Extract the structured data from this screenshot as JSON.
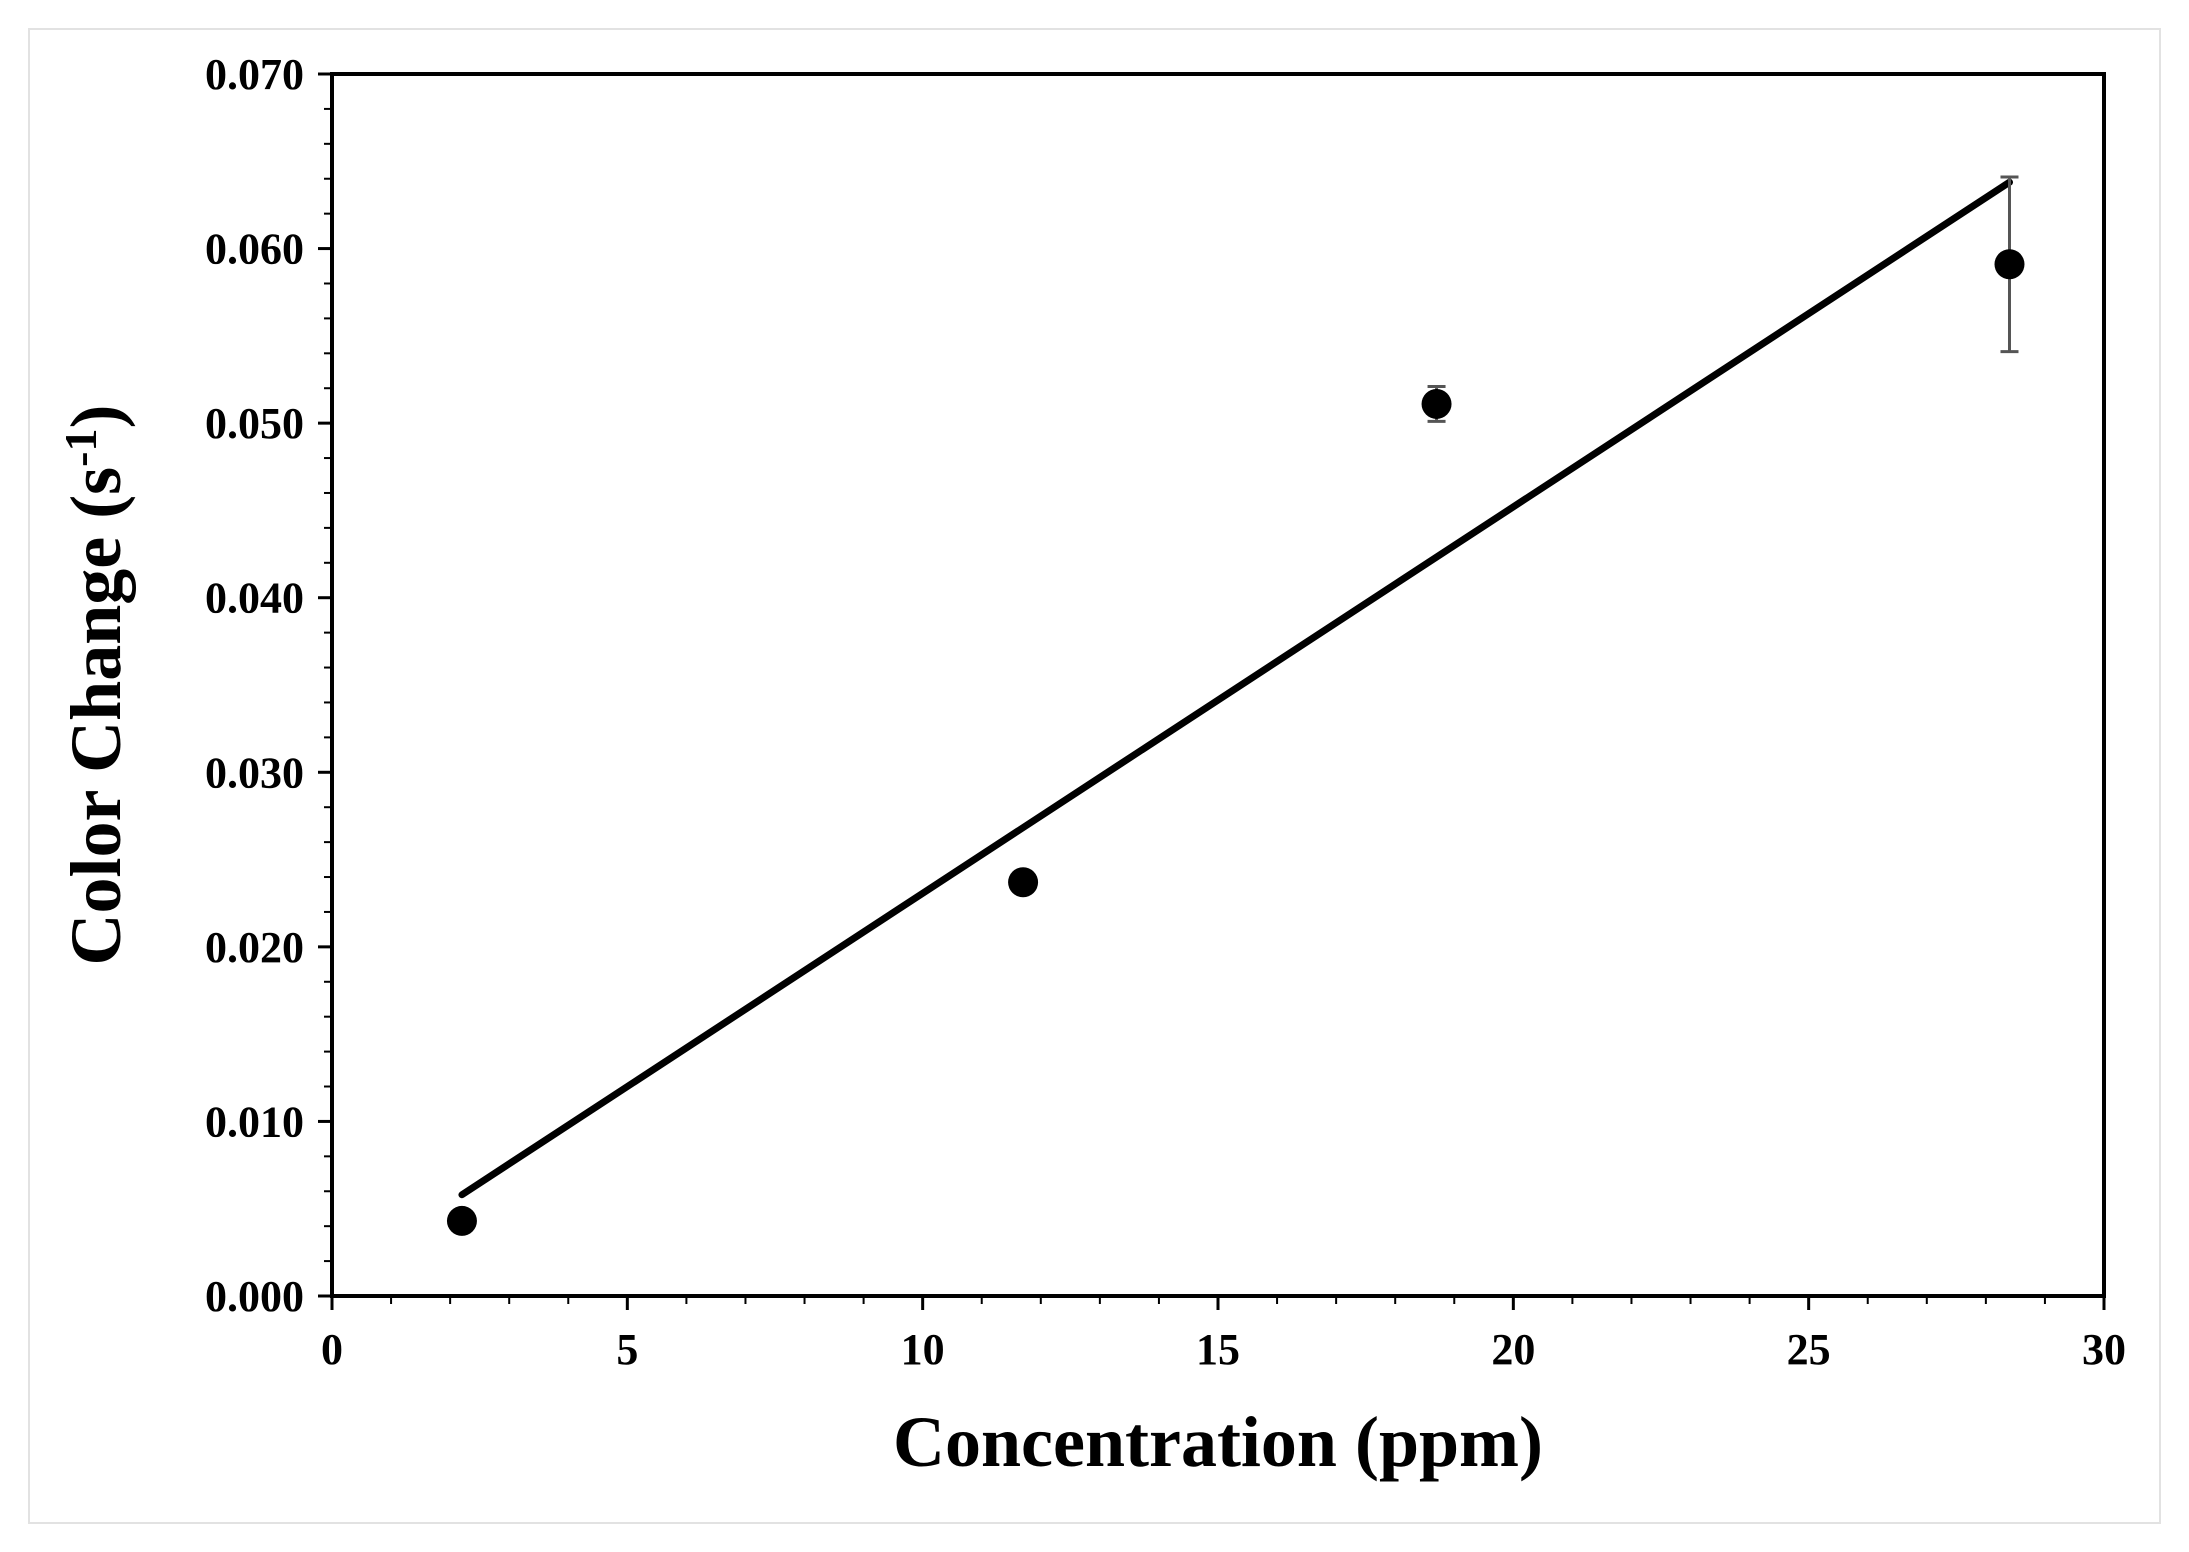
{
  "chart_data": {
    "type": "scatter",
    "title": "",
    "xlabel": "Concentration (ppm)",
    "ylabel_main": "Color Change (s",
    "ylabel_sup": "-1",
    "ylabel_close": ")",
    "xlim": [
      0,
      30
    ],
    "ylim": [
      0,
      0.07
    ],
    "grid": false,
    "x_ticks": [
      0,
      5,
      10,
      15,
      20,
      25,
      30
    ],
    "x_tick_labels": [
      "0",
      "5",
      "10",
      "15",
      "20",
      "25",
      "30"
    ],
    "y_ticks": [
      0,
      0.01,
      0.02,
      0.03,
      0.04,
      0.05,
      0.06,
      0.07
    ],
    "y_tick_labels": [
      "0.000",
      "0.010",
      "0.020",
      "0.030",
      "0.040",
      "0.050",
      "0.060",
      "0.070"
    ],
    "series": [
      {
        "points": [
          {
            "x": 2.2,
            "y": 0.0043,
            "err": 0.0003
          },
          {
            "x": 11.7,
            "y": 0.0237,
            "err": 0.0004
          },
          {
            "x": 18.7,
            "y": 0.0511,
            "err": 0.001
          },
          {
            "x": 28.4,
            "y": 0.0591,
            "err": 0.005
          }
        ]
      }
    ],
    "fit_line": {
      "x": [
        2.2,
        28.4
      ],
      "y": [
        0.0058,
        0.0638
      ]
    },
    "colors": {
      "marker": "#000000",
      "line": "#000000",
      "error_bar": "#555555",
      "frame": "#e2e2e2"
    }
  }
}
